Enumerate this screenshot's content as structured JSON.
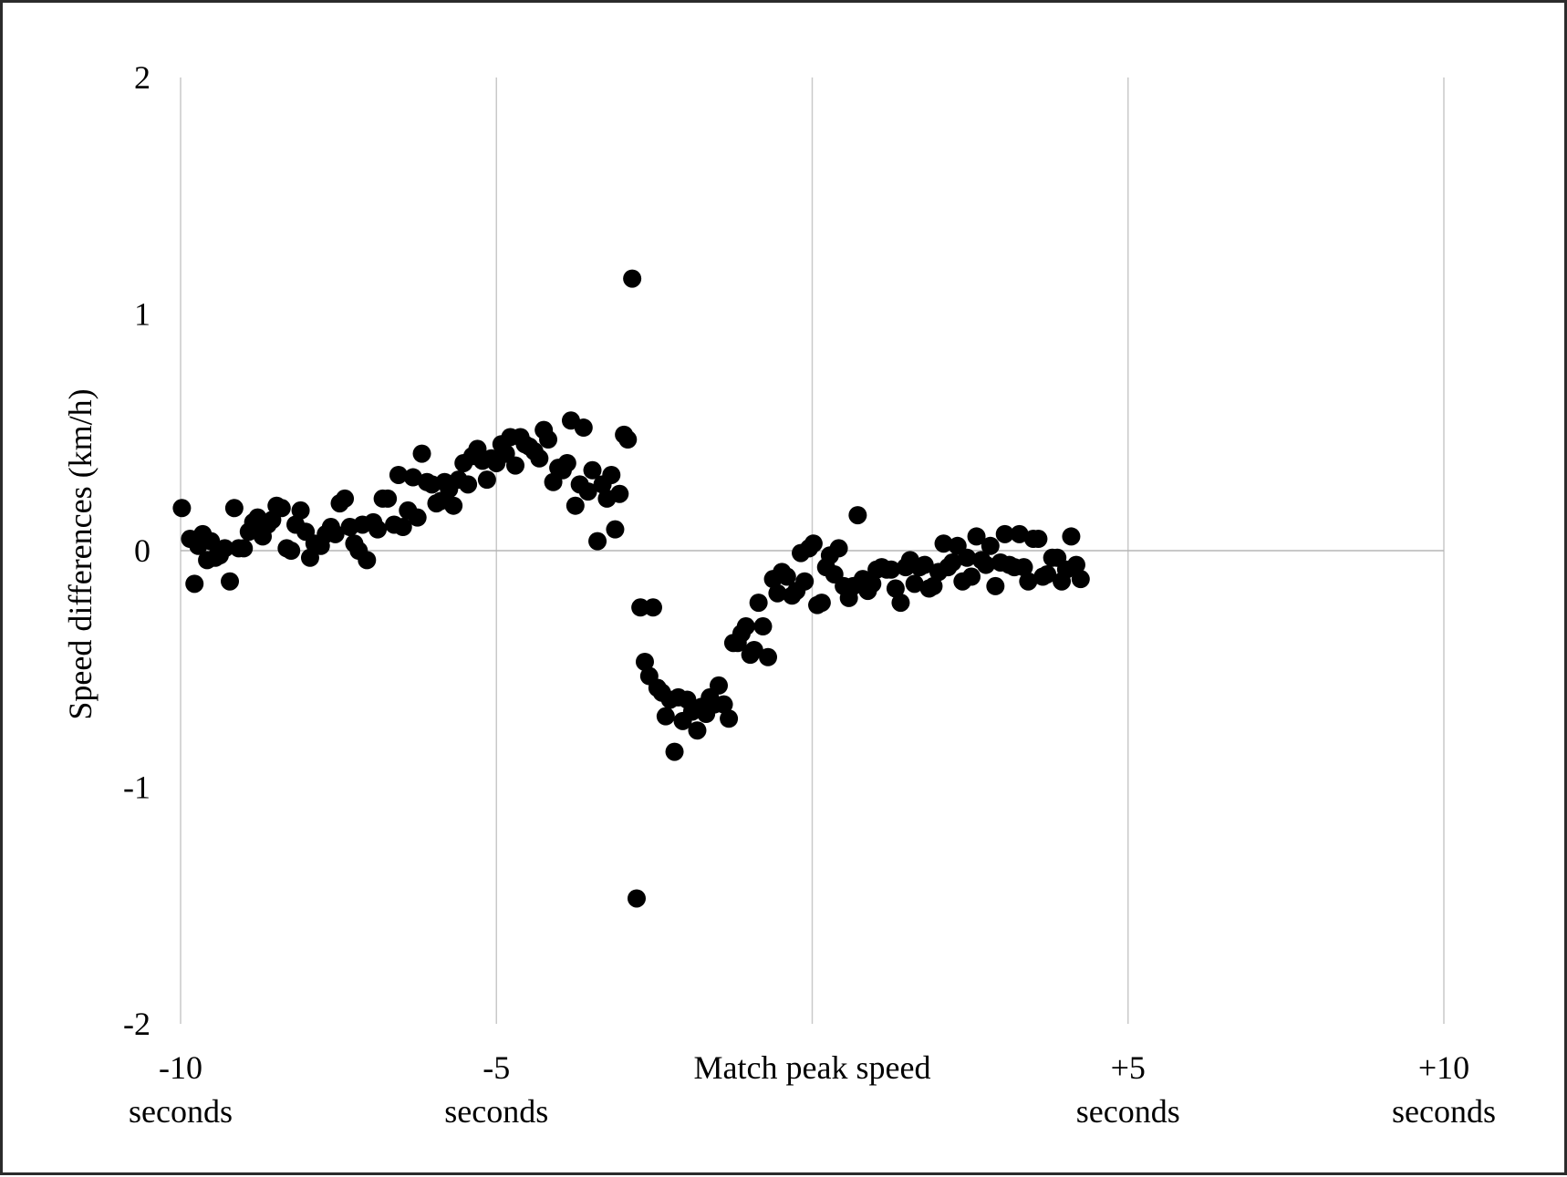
{
  "chart_data": {
    "type": "scatter",
    "title": "",
    "ylabel": "Speed differences (km/h)",
    "xlabel": "",
    "xlim": [
      -10,
      10
    ],
    "ylim": [
      -2,
      2
    ],
    "grid": {
      "vertical": true,
      "horizontal": false,
      "zero_line": true
    },
    "legend": "none",
    "marker_color": "#000000",
    "y_ticks": [
      "2",
      "1",
      "0",
      "-1",
      "-2"
    ],
    "x_ticks": [
      {
        "value": -10,
        "line1": "-10",
        "line2": "seconds"
      },
      {
        "value": -5,
        "line1": "-5",
        "line2": "seconds"
      },
      {
        "value": 0,
        "line1": "Match peak speed",
        "line2": ""
      },
      {
        "value": 5,
        "line1": "+5",
        "line2": "seconds"
      },
      {
        "value": 10,
        "line1": "+10",
        "line2": "seconds"
      }
    ],
    "points": [
      [
        -9.98,
        0.18
      ],
      [
        -9.85,
        0.05
      ],
      [
        -9.78,
        -0.14
      ],
      [
        -9.72,
        0.02
      ],
      [
        -9.65,
        0.07
      ],
      [
        -9.58,
        -0.04
      ],
      [
        -9.52,
        0.04
      ],
      [
        -9.45,
        -0.03
      ],
      [
        -9.38,
        -0.02
      ],
      [
        -9.3,
        0.01
      ],
      [
        -9.22,
        -0.13
      ],
      [
        -9.15,
        0.18
      ],
      [
        -9.08,
        0.01
      ],
      [
        -9.0,
        0.01
      ],
      [
        -8.92,
        0.08
      ],
      [
        -8.85,
        0.12
      ],
      [
        -8.78,
        0.14
      ],
      [
        -8.7,
        0.06
      ],
      [
        -8.62,
        0.11
      ],
      [
        -8.55,
        0.13
      ],
      [
        -8.48,
        0.19
      ],
      [
        -8.4,
        0.18
      ],
      [
        -8.32,
        0.01
      ],
      [
        -8.25,
        0.0
      ],
      [
        -8.18,
        0.11
      ],
      [
        -8.1,
        0.17
      ],
      [
        -8.02,
        0.08
      ],
      [
        -7.95,
        -0.03
      ],
      [
        -7.88,
        0.03
      ],
      [
        -7.78,
        0.02
      ],
      [
        -7.7,
        0.07
      ],
      [
        -7.62,
        0.1
      ],
      [
        -7.55,
        0.07
      ],
      [
        -7.48,
        0.2
      ],
      [
        -7.4,
        0.22
      ],
      [
        -7.32,
        0.1
      ],
      [
        -7.25,
        0.03
      ],
      [
        -7.18,
        0.0
      ],
      [
        -7.12,
        0.11
      ],
      [
        -7.05,
        -0.04
      ],
      [
        -6.95,
        0.12
      ],
      [
        -6.88,
        0.09
      ],
      [
        -6.8,
        0.22
      ],
      [
        -6.72,
        0.22
      ],
      [
        -6.62,
        0.11
      ],
      [
        -6.55,
        0.32
      ],
      [
        -6.48,
        0.1
      ],
      [
        -6.4,
        0.17
      ],
      [
        -6.32,
        0.31
      ],
      [
        -6.25,
        0.14
      ],
      [
        -6.18,
        0.41
      ],
      [
        -6.1,
        0.29
      ],
      [
        -6.02,
        0.28
      ],
      [
        -5.95,
        0.2
      ],
      [
        -5.88,
        0.21
      ],
      [
        -5.82,
        0.29
      ],
      [
        -5.75,
        0.26
      ],
      [
        -5.68,
        0.19
      ],
      [
        -5.6,
        0.3
      ],
      [
        -5.52,
        0.37
      ],
      [
        -5.45,
        0.28
      ],
      [
        -5.38,
        0.4
      ],
      [
        -5.3,
        0.43
      ],
      [
        -5.22,
        0.38
      ],
      [
        -5.15,
        0.3
      ],
      [
        -5.08,
        0.39
      ],
      [
        -5.0,
        0.37
      ],
      [
        -4.92,
        0.45
      ],
      [
        -4.85,
        0.41
      ],
      [
        -4.78,
        0.48
      ],
      [
        -4.7,
        0.36
      ],
      [
        -4.62,
        0.48
      ],
      [
        -4.55,
        0.45
      ],
      [
        -4.48,
        0.44
      ],
      [
        -4.4,
        0.42
      ],
      [
        -4.32,
        0.39
      ],
      [
        -4.25,
        0.51
      ],
      [
        -4.18,
        0.47
      ],
      [
        -4.1,
        0.29
      ],
      [
        -4.02,
        0.35
      ],
      [
        -3.95,
        0.34
      ],
      [
        -3.88,
        0.37
      ],
      [
        -3.82,
        0.55
      ],
      [
        -3.75,
        0.19
      ],
      [
        -3.68,
        0.28
      ],
      [
        -3.62,
        0.52
      ],
      [
        -3.55,
        0.25
      ],
      [
        -3.48,
        0.34
      ],
      [
        -3.4,
        0.04
      ],
      [
        -3.32,
        0.28
      ],
      [
        -3.25,
        0.22
      ],
      [
        -3.18,
        0.32
      ],
      [
        -3.12,
        0.09
      ],
      [
        -3.05,
        0.24
      ],
      [
        -2.98,
        0.49
      ],
      [
        -2.92,
        0.47
      ],
      [
        -2.85,
        1.15
      ],
      [
        -2.78,
        -1.47
      ],
      [
        -2.72,
        -0.24
      ],
      [
        -2.65,
        -0.47
      ],
      [
        -2.58,
        -0.53
      ],
      [
        -2.52,
        -0.24
      ],
      [
        -2.45,
        -0.58
      ],
      [
        -2.38,
        -0.6
      ],
      [
        -2.32,
        -0.7
      ],
      [
        -2.25,
        -0.63
      ],
      [
        -2.18,
        -0.85
      ],
      [
        -2.12,
        -0.62
      ],
      [
        -2.05,
        -0.72
      ],
      [
        -1.98,
        -0.63
      ],
      [
        -1.9,
        -0.68
      ],
      [
        -1.82,
        -0.76
      ],
      [
        -1.75,
        -0.66
      ],
      [
        -1.68,
        -0.69
      ],
      [
        -1.62,
        -0.62
      ],
      [
        -1.55,
        -0.65
      ],
      [
        -1.48,
        -0.57
      ],
      [
        -1.4,
        -0.65
      ],
      [
        -1.32,
        -0.71
      ],
      [
        -1.25,
        -0.39
      ],
      [
        -1.18,
        -0.39
      ],
      [
        -1.12,
        -0.35
      ],
      [
        -1.05,
        -0.32
      ],
      [
        -0.98,
        -0.44
      ],
      [
        -0.92,
        -0.42
      ],
      [
        -0.85,
        -0.22
      ],
      [
        -0.78,
        -0.32
      ],
      [
        -0.7,
        -0.45
      ],
      [
        -0.62,
        -0.12
      ],
      [
        -0.55,
        -0.18
      ],
      [
        -0.48,
        -0.09
      ],
      [
        -0.4,
        -0.11
      ],
      [
        -0.32,
        -0.19
      ],
      [
        -0.25,
        -0.17
      ],
      [
        -0.18,
        -0.01
      ],
      [
        -0.12,
        -0.13
      ],
      [
        -0.05,
        0.01
      ],
      [
        0.02,
        0.03
      ],
      [
        0.08,
        -0.23
      ],
      [
        0.15,
        -0.22
      ],
      [
        0.22,
        -0.07
      ],
      [
        0.28,
        -0.02
      ],
      [
        0.35,
        -0.1
      ],
      [
        0.42,
        0.01
      ],
      [
        0.5,
        -0.15
      ],
      [
        0.58,
        -0.2
      ],
      [
        0.65,
        -0.15
      ],
      [
        0.72,
        0.15
      ],
      [
        0.8,
        -0.12
      ],
      [
        0.88,
        -0.17
      ],
      [
        0.95,
        -0.14
      ],
      [
        1.02,
        -0.08
      ],
      [
        1.1,
        -0.07
      ],
      [
        1.18,
        -0.08
      ],
      [
        1.25,
        -0.08
      ],
      [
        1.32,
        -0.16
      ],
      [
        1.4,
        -0.22
      ],
      [
        1.48,
        -0.07
      ],
      [
        1.55,
        -0.04
      ],
      [
        1.62,
        -0.14
      ],
      [
        1.7,
        -0.07
      ],
      [
        1.78,
        -0.06
      ],
      [
        1.85,
        -0.16
      ],
      [
        1.92,
        -0.15
      ],
      [
        2.0,
        -0.09
      ],
      [
        2.08,
        0.03
      ],
      [
        2.15,
        -0.07
      ],
      [
        2.22,
        -0.05
      ],
      [
        2.3,
        0.02
      ],
      [
        2.38,
        -0.13
      ],
      [
        2.45,
        -0.03
      ],
      [
        2.52,
        -0.11
      ],
      [
        2.6,
        0.06
      ],
      [
        2.68,
        -0.04
      ],
      [
        2.75,
        -0.06
      ],
      [
        2.82,
        0.02
      ],
      [
        2.9,
        -0.15
      ],
      [
        2.98,
        -0.05
      ],
      [
        3.05,
        0.07
      ],
      [
        3.12,
        -0.06
      ],
      [
        3.2,
        -0.07
      ],
      [
        3.28,
        0.07
      ],
      [
        3.35,
        -0.07
      ],
      [
        3.42,
        -0.13
      ],
      [
        3.5,
        0.05
      ],
      [
        3.58,
        0.05
      ],
      [
        3.65,
        -0.11
      ],
      [
        3.72,
        -0.1
      ],
      [
        3.8,
        -0.03
      ],
      [
        3.88,
        -0.03
      ],
      [
        3.95,
        -0.13
      ],
      [
        4.02,
        -0.08
      ],
      [
        4.1,
        0.06
      ],
      [
        4.18,
        -0.06
      ],
      [
        4.25,
        -0.12
      ]
    ]
  }
}
